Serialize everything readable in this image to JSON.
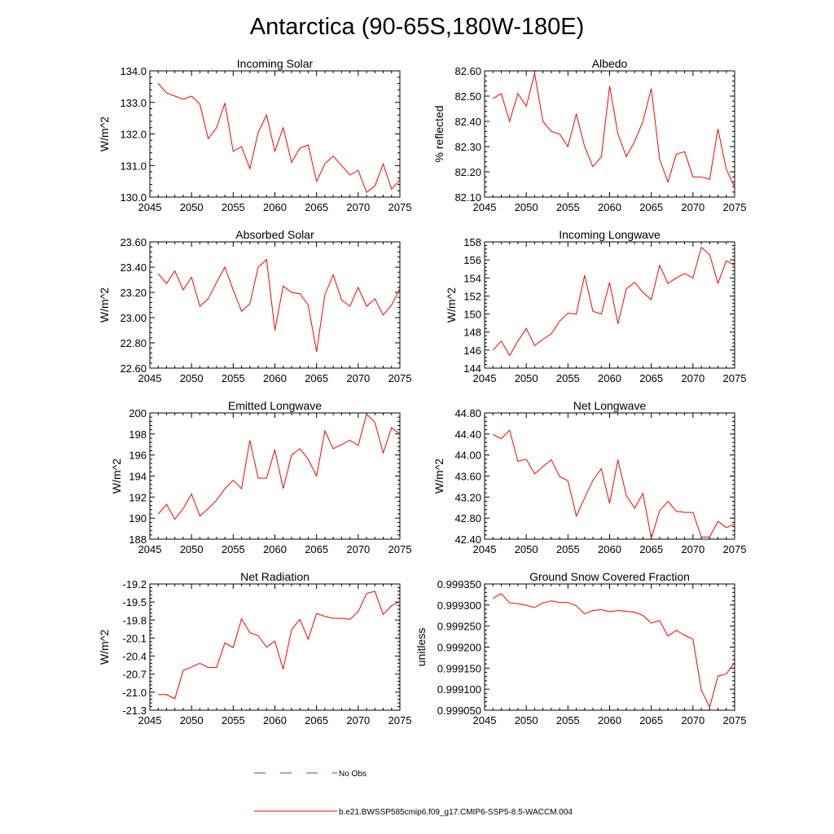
{
  "title": "Antarctica (90-65S,180W-180E)",
  "legend": {
    "obs_label": "No Obs",
    "obs_color": "#4a4ac8",
    "model_label": "b.e21.BWSSP585cmip6.f09_g17.CMIP6-SSP5-8.5-WACCM.004",
    "model_color": "#ff0000"
  },
  "chart_data": [
    {
      "type": "line",
      "title": "Incoming Solar",
      "xlabel": "",
      "ylabel": "W/m^2",
      "xlim": [
        2045,
        2075
      ],
      "ylim": [
        130.0,
        134.0
      ],
      "xticks": [
        2045,
        2050,
        2055,
        2060,
        2065,
        2070,
        2075
      ],
      "yticks": [
        "130.0",
        "131.0",
        "132.0",
        "133.0",
        "134.0"
      ],
      "x": [
        2046,
        2047,
        2048,
        2049,
        2050,
        2051,
        2052,
        2053,
        2054,
        2055,
        2056,
        2057,
        2058,
        2059,
        2060,
        2061,
        2062,
        2063,
        2064,
        2065,
        2066,
        2067,
        2068,
        2069,
        2070,
        2071,
        2072,
        2073,
        2074,
        2075
      ],
      "series": [
        {
          "name": "b.e21.BWSSP585cmip6.f09_g17.CMIP6-SSP5-8.5-WACCM.004",
          "values": [
            133.6,
            133.3,
            133.2,
            133.1,
            133.2,
            132.95,
            131.85,
            132.2,
            132.98,
            131.45,
            131.6,
            130.9,
            132.05,
            132.6,
            131.45,
            132.2,
            131.1,
            131.55,
            131.65,
            130.5,
            131.05,
            131.3,
            131.0,
            130.7,
            130.85,
            130.15,
            130.35,
            131.05,
            130.25,
            130.55
          ]
        }
      ]
    },
    {
      "type": "line",
      "title": "Albedo",
      "xlabel": "",
      "ylabel": "% reflected",
      "xlim": [
        2045,
        2075
      ],
      "ylim": [
        82.1,
        82.6
      ],
      "xticks": [
        2045,
        2050,
        2055,
        2060,
        2065,
        2070,
        2075
      ],
      "yticks": [
        "82.10",
        "82.20",
        "82.30",
        "82.40",
        "82.50",
        "82.60"
      ],
      "x": [
        2046,
        2047,
        2048,
        2049,
        2050,
        2051,
        2052,
        2053,
        2054,
        2055,
        2056,
        2057,
        2058,
        2059,
        2060,
        2061,
        2062,
        2063,
        2064,
        2065,
        2066,
        2067,
        2068,
        2069,
        2070,
        2071,
        2072,
        2073,
        2074,
        2075
      ],
      "series": [
        {
          "name": "b.e21.BWSSP585cmip6.f09_g17.CMIP6-SSP5-8.5-WACCM.004",
          "values": [
            82.49,
            82.51,
            82.4,
            82.51,
            82.46,
            82.59,
            82.4,
            82.36,
            82.35,
            82.3,
            82.43,
            82.3,
            82.22,
            82.26,
            82.54,
            82.35,
            82.26,
            82.32,
            82.4,
            82.53,
            82.25,
            82.16,
            82.27,
            82.28,
            82.18,
            82.18,
            82.17,
            82.37,
            82.21,
            82.14
          ]
        }
      ]
    },
    {
      "type": "line",
      "title": "Absorbed Solar",
      "xlabel": "",
      "ylabel": "W/m^2",
      "xlim": [
        2045,
        2075
      ],
      "ylim": [
        22.6,
        23.6
      ],
      "xticks": [
        2045,
        2050,
        2055,
        2060,
        2065,
        2070,
        2075
      ],
      "yticks": [
        "22.60",
        "22.80",
        "23.00",
        "23.20",
        "23.40",
        "23.60"
      ],
      "x": [
        2046,
        2047,
        2048,
        2049,
        2050,
        2051,
        2052,
        2053,
        2054,
        2055,
        2056,
        2057,
        2058,
        2059,
        2060,
        2061,
        2062,
        2063,
        2064,
        2065,
        2066,
        2067,
        2068,
        2069,
        2070,
        2071,
        2072,
        2073,
        2074,
        2075
      ],
      "series": [
        {
          "name": "b.e21.BWSSP585cmip6.f09_g17.CMIP6-SSP5-8.5-WACCM.004",
          "values": [
            23.35,
            23.27,
            23.37,
            23.22,
            23.32,
            23.09,
            23.15,
            23.28,
            23.4,
            23.22,
            23.05,
            23.11,
            23.4,
            23.46,
            22.9,
            23.25,
            23.2,
            23.19,
            23.1,
            22.73,
            23.18,
            23.34,
            23.14,
            23.09,
            23.24,
            23.09,
            23.15,
            23.02,
            23.1,
            23.23
          ]
        }
      ]
    },
    {
      "type": "line",
      "title": "Incoming Longwave",
      "xlabel": "",
      "ylabel": "W/m^2",
      "xlim": [
        2045,
        2075
      ],
      "ylim": [
        144,
        158
      ],
      "xticks": [
        2045,
        2050,
        2055,
        2060,
        2065,
        2070,
        2075
      ],
      "yticks": [
        "144",
        "146",
        "148",
        "150",
        "152",
        "154",
        "156",
        "158"
      ],
      "x": [
        2046,
        2047,
        2048,
        2049,
        2050,
        2051,
        2052,
        2053,
        2054,
        2055,
        2056,
        2057,
        2058,
        2059,
        2060,
        2061,
        2062,
        2063,
        2064,
        2065,
        2066,
        2067,
        2068,
        2069,
        2070,
        2071,
        2072,
        2073,
        2074,
        2075
      ],
      "series": [
        {
          "name": "b.e21.BWSSP585cmip6.f09_g17.CMIP6-SSP5-8.5-WACCM.004",
          "values": [
            146.0,
            147.0,
            145.4,
            147.0,
            148.4,
            146.5,
            147.2,
            147.8,
            149.2,
            150.1,
            150.0,
            154.3,
            150.3,
            150.0,
            153.5,
            148.9,
            152.8,
            153.5,
            152.4,
            151.6,
            155.4,
            153.4,
            154.0,
            154.5,
            154.0,
            157.4,
            156.6,
            153.4,
            155.9,
            155.4
          ]
        }
      ]
    },
    {
      "type": "line",
      "title": "Emitted Longwave",
      "xlabel": "",
      "ylabel": "W/m^2",
      "xlim": [
        2045,
        2075
      ],
      "ylim": [
        188,
        200
      ],
      "xticks": [
        2045,
        2050,
        2055,
        2060,
        2065,
        2070,
        2075
      ],
      "yticks": [
        "188",
        "190",
        "192",
        "194",
        "196",
        "198",
        "200"
      ],
      "x": [
        2046,
        2047,
        2048,
        2049,
        2050,
        2051,
        2052,
        2053,
        2054,
        2055,
        2056,
        2057,
        2058,
        2059,
        2060,
        2061,
        2062,
        2063,
        2064,
        2065,
        2066,
        2067,
        2068,
        2069,
        2070,
        2071,
        2072,
        2073,
        2074,
        2075
      ],
      "series": [
        {
          "name": "b.e21.BWSSP585cmip6.f09_g17.CMIP6-SSP5-8.5-WACCM.004",
          "values": [
            190.4,
            191.3,
            189.9,
            190.9,
            192.3,
            190.2,
            190.9,
            191.7,
            192.8,
            193.6,
            192.8,
            197.4,
            193.8,
            193.8,
            196.5,
            192.8,
            196.0,
            196.6,
            195.6,
            194.0,
            198.3,
            196.6,
            197.0,
            197.4,
            196.9,
            199.9,
            199.1,
            196.2,
            198.6,
            198.0
          ]
        }
      ]
    },
    {
      "type": "line",
      "title": "Net Longwave",
      "xlabel": "",
      "ylabel": "W/m^2",
      "xlim": [
        2045,
        2075
      ],
      "ylim": [
        42.4,
        44.8
      ],
      "xticks": [
        2045,
        2050,
        2055,
        2060,
        2065,
        2070,
        2075
      ],
      "yticks": [
        "42.40",
        "42.80",
        "43.20",
        "43.60",
        "44.00",
        "44.40",
        "44.80"
      ],
      "x": [
        2046,
        2047,
        2048,
        2049,
        2050,
        2051,
        2052,
        2053,
        2054,
        2055,
        2056,
        2057,
        2058,
        2059,
        2060,
        2061,
        2062,
        2063,
        2064,
        2065,
        2066,
        2067,
        2068,
        2069,
        2070,
        2071,
        2072,
        2073,
        2074,
        2075
      ],
      "series": [
        {
          "name": "b.e21.BWSSP585cmip6.f09_g17.CMIP6-SSP5-8.5-WACCM.004",
          "values": [
            44.39,
            44.31,
            44.47,
            43.88,
            43.92,
            43.64,
            43.78,
            43.91,
            43.59,
            43.51,
            42.84,
            43.18,
            43.52,
            43.74,
            43.08,
            43.91,
            43.23,
            42.99,
            43.27,
            42.42,
            42.94,
            43.12,
            42.93,
            42.91,
            42.91,
            42.44,
            42.44,
            42.74,
            42.62,
            42.69
          ]
        }
      ]
    },
    {
      "type": "line",
      "title": "Net Radiation",
      "xlabel": "",
      "ylabel": "W/m^2",
      "xlim": [
        2045,
        2075
      ],
      "ylim": [
        -21.3,
        -19.2
      ],
      "xticks": [
        2045,
        2050,
        2055,
        2060,
        2065,
        2070,
        2075
      ],
      "yticks": [
        "-21.3",
        "-21.0",
        "-20.7",
        "-20.4",
        "-20.1",
        "-19.8",
        "-19.5",
        "-19.2"
      ],
      "x": [
        2046,
        2047,
        2048,
        2049,
        2050,
        2051,
        2052,
        2053,
        2054,
        2055,
        2056,
        2057,
        2058,
        2059,
        2060,
        2061,
        2062,
        2063,
        2064,
        2065,
        2066,
        2067,
        2068,
        2069,
        2070,
        2071,
        2072,
        2073,
        2074,
        2075
      ],
      "series": [
        {
          "name": "b.e21.BWSSP585cmip6.f09_g17.CMIP6-SSP5-8.5-WACCM.004",
          "values": [
            -21.04,
            -21.04,
            -21.11,
            -20.64,
            -20.58,
            -20.52,
            -20.59,
            -20.59,
            -20.18,
            -20.26,
            -19.78,
            -20.01,
            -20.06,
            -20.25,
            -20.15,
            -20.62,
            -19.96,
            -19.79,
            -20.12,
            -19.69,
            -19.74,
            -19.77,
            -19.77,
            -19.79,
            -19.66,
            -19.36,
            -19.32,
            -19.71,
            -19.56,
            -19.5
          ]
        }
      ]
    },
    {
      "type": "line",
      "title": "Ground Snow Covered Fraction",
      "xlabel": "",
      "ylabel": "unitless",
      "xlim": [
        2045,
        2075
      ],
      "ylim": [
        0.99905,
        0.99935
      ],
      "xticks": [
        2045,
        2050,
        2055,
        2060,
        2065,
        2070,
        2075
      ],
      "yticks": [
        "0.999050",
        "0.999100",
        "0.999150",
        "0.999200",
        "0.999250",
        "0.999300",
        "0.999350"
      ],
      "x": [
        2046,
        2047,
        2048,
        2049,
        2050,
        2051,
        2052,
        2053,
        2054,
        2055,
        2056,
        2057,
        2058,
        2059,
        2060,
        2061,
        2062,
        2063,
        2064,
        2065,
        2066,
        2067,
        2068,
        2069,
        2070,
        2071,
        2072,
        2073,
        2074,
        2075
      ],
      "series": [
        {
          "name": "b.e21.BWSSP585cmip6.f09_g17.CMIP6-SSP5-8.5-WACCM.004",
          "values": [
            0.999316,
            0.999327,
            0.999305,
            0.999303,
            0.999299,
            0.999294,
            0.999305,
            0.99931,
            0.999306,
            0.999306,
            0.999298,
            0.999279,
            0.999287,
            0.999289,
            0.999284,
            0.999287,
            0.999285,
            0.999283,
            0.999275,
            0.999257,
            0.999263,
            0.999226,
            0.99924,
            0.999228,
            0.999219,
            0.999098,
            0.999057,
            0.999131,
            0.999136,
            0.999164
          ]
        }
      ]
    }
  ]
}
